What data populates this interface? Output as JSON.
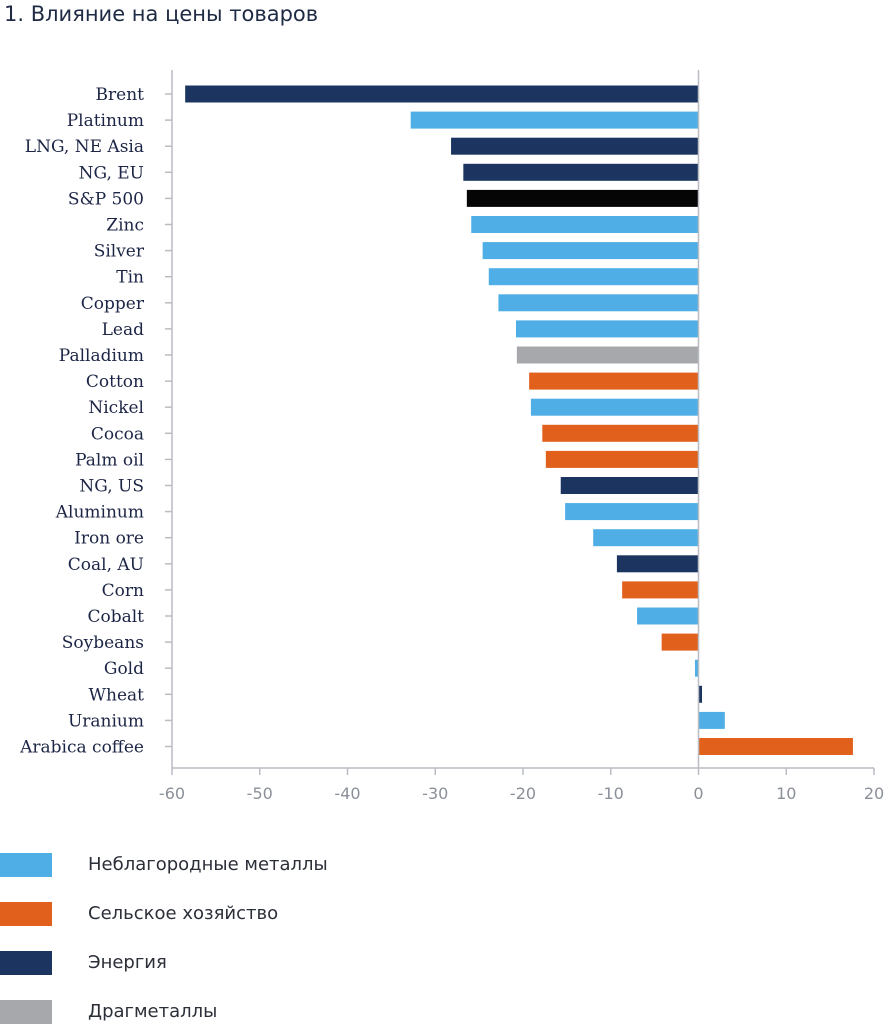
{
  "chart_data": {
    "type": "bar",
    "orientation": "horizontal",
    "title": "1. Влияние на цены товаров",
    "categories": [
      "Brent",
      "Platinum",
      "LNG, NE Asia",
      "NG, EU",
      "S&P 500",
      "Zinc",
      "Silver",
      "Tin",
      "Copper",
      "Lead",
      "Palladium",
      "Cotton",
      "Nickel",
      "Cocoa",
      "Palm oil",
      "NG, US",
      "Aluminum",
      "Iron ore",
      "Coal, AU",
      "Corn",
      "Cobalt",
      "Soybeans",
      "Gold",
      "Wheat",
      "Uranium",
      "Arabica coffee"
    ],
    "values": [
      -58.5,
      -32.8,
      -28.2,
      -26.8,
      -26.4,
      -25.9,
      -24.6,
      -23.9,
      -22.8,
      -20.8,
      -20.7,
      -19.3,
      -19.1,
      -17.8,
      -17.4,
      -15.7,
      -15.2,
      -12.0,
      -9.3,
      -8.7,
      -7.0,
      -4.2,
      -0.4,
      0.4,
      3.0,
      17.6
    ],
    "groups": [
      "energy",
      "base",
      "energy",
      "energy",
      "index",
      "base",
      "base",
      "base",
      "base",
      "base",
      "precious",
      "agri",
      "base",
      "agri",
      "agri",
      "energy",
      "base",
      "base",
      "energy",
      "agri",
      "base",
      "agri",
      "base",
      "energy",
      "base",
      "agri"
    ],
    "xlim": [
      -60,
      20
    ],
    "xticks": [
      -60,
      -50,
      -40,
      -30,
      -20,
      -10,
      0,
      10,
      20
    ],
    "colors": {
      "base": "#50aee6",
      "agri": "#e0601c",
      "energy": "#1b3560",
      "precious": "#a6a8ab",
      "index": "#050505"
    },
    "legend": [
      {
        "key": "base",
        "label": "Неблагородные металлы"
      },
      {
        "key": "agri",
        "label": "Сельское хозяйство"
      },
      {
        "key": "energy",
        "label": "Энергия"
      },
      {
        "key": "precious",
        "label": "Драгметаллы"
      }
    ]
  }
}
